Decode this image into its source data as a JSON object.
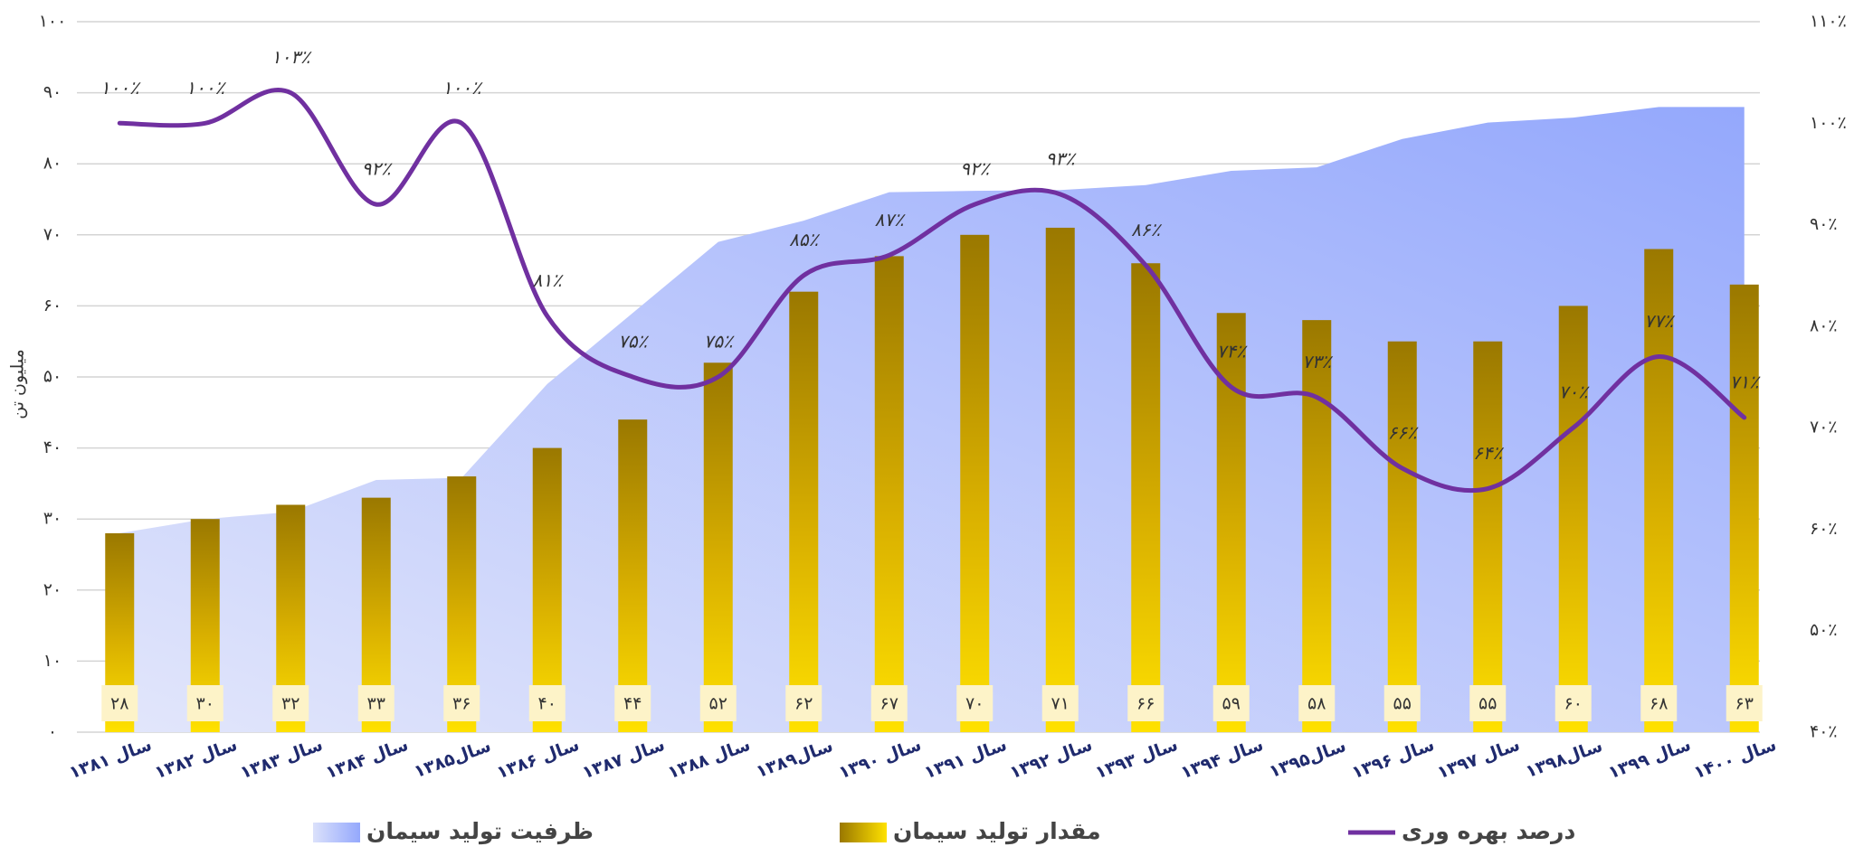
{
  "chart_data": {
    "type": "bar",
    "y_label": "میلیون تن",
    "categories": [
      "سال ۱۳۸۱",
      "سال ۱۳۸۲",
      "سال ۱۳۸۳",
      "سال ۱۳۸۴",
      "سال۱۳۸۵",
      "سال ۱۳۸۶",
      "سال ۱۳۸۷",
      "سال ۱۳۸۸",
      "سال۱۳۸۹",
      "سال ۱۳۹۰",
      "سال ۱۳۹۱",
      "سال ۱۳۹۲",
      "سال ۱۳۹۳",
      "سال ۱۳۹۴",
      "سال۱۳۹۵",
      "سال ۱۳۹۶",
      "سال ۱۳۹۷",
      "سال۱۳۹۸",
      "سال ۱۳۹۹",
      "سال ۱۴۰۰"
    ],
    "series": [
      {
        "name": "ظرفیت تولید سیمان",
        "type": "area",
        "color": "#94a8fc",
        "values": [
          28,
          30,
          31,
          35.5,
          35.8,
          49,
          59,
          69,
          72,
          76,
          76.2,
          76.3,
          77,
          79,
          79.5,
          83.5,
          85.8,
          86.5,
          88,
          88
        ]
      },
      {
        "name": "مقدار تولید سیمان",
        "type": "bar",
        "color": "#ffd700",
        "values": [
          28,
          30,
          32,
          33,
          36,
          40,
          44,
          52,
          62,
          67,
          70,
          71,
          66,
          59,
          58,
          55,
          55,
          60,
          68,
          63
        ],
        "value_labels": [
          "۲۸",
          "۳۰",
          "۳۲",
          "۳۳",
          "۳۶",
          "۴۰",
          "۴۴",
          "۵۲",
          "۶۲",
          "۶۷",
          "۷۰",
          "۷۱",
          "۶۶",
          "۵۹",
          "۵۸",
          "۵۵",
          "۵۵",
          "۶۰",
          "۶۸",
          "۶۳"
        ]
      },
      {
        "name": "درصد بهره وری",
        "type": "line",
        "color": "#7030a0",
        "axis": "y2",
        "values": [
          100,
          100,
          103,
          92,
          100,
          81,
          75,
          75,
          85,
          87,
          92,
          93,
          86,
          74,
          73,
          66,
          64,
          70,
          77,
          71
        ],
        "value_labels": [
          "۱۰۰٪",
          "۱۰۰٪",
          "۱۰۳٪",
          "۹۲٪",
          "۱۰۰٪",
          "۸۱٪",
          "۷۵٪",
          "۷۵٪",
          "۸۵٪",
          "۸۷٪",
          "۹۲٪",
          "۹۳٪",
          "۸۶٪",
          "۷۴٪",
          "۷۳٪",
          "۶۶٪",
          "۶۴٪",
          "۷۰٪",
          "۷۷٪",
          "۷۱٪"
        ]
      }
    ],
    "ylim": [
      0,
      100
    ],
    "yticks": [
      {
        "value": 0,
        "label": "۰"
      },
      {
        "value": 10,
        "label": "۱۰"
      },
      {
        "value": 20,
        "label": "۲۰"
      },
      {
        "value": 30,
        "label": "۳۰"
      },
      {
        "value": 40,
        "label": "۴۰"
      },
      {
        "value": 50,
        "label": "۵۰"
      },
      {
        "value": 60,
        "label": "۶۰"
      },
      {
        "value": 70,
        "label": "۷۰"
      },
      {
        "value": 80,
        "label": "۸۰"
      },
      {
        "value": 90,
        "label": "۹۰"
      },
      {
        "value": 100,
        "label": "۱۰۰"
      }
    ],
    "y2lim": [
      40,
      110
    ],
    "y2ticks": [
      {
        "value": 40,
        "label": "۴۰٪"
      },
      {
        "value": 50,
        "label": "۵۰٪"
      },
      {
        "value": 60,
        "label": "۶۰٪"
      },
      {
        "value": 70,
        "label": "۷۰٪"
      },
      {
        "value": 80,
        "label": "۸۰٪"
      },
      {
        "value": 90,
        "label": "۹۰٪"
      },
      {
        "value": 100,
        "label": "۱۰۰٪"
      },
      {
        "value": 110,
        "label": "۱۱۰٪"
      }
    ],
    "grid": true,
    "legend": "bottom"
  }
}
